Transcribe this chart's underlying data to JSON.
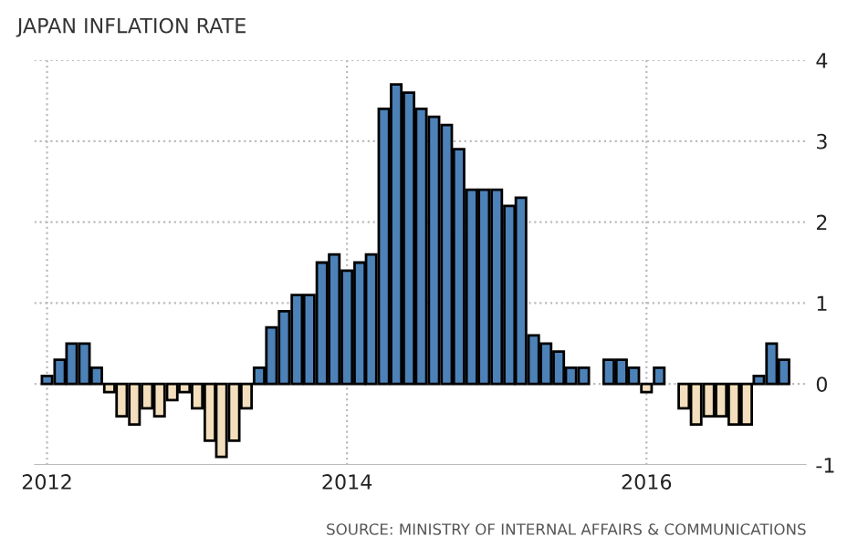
{
  "chart_data": {
    "type": "bar",
    "title": "JAPAN INFLATION RATE",
    "x": [
      "2012-01",
      "2012-02",
      "2012-03",
      "2012-04",
      "2012-05",
      "2012-06",
      "2012-07",
      "2012-08",
      "2012-09",
      "2012-10",
      "2012-11",
      "2012-12",
      "2013-01",
      "2013-02",
      "2013-03",
      "2013-04",
      "2013-05",
      "2013-06",
      "2013-07",
      "2013-08",
      "2013-09",
      "2013-10",
      "2013-11",
      "2013-12",
      "2014-01",
      "2014-02",
      "2014-03",
      "2014-04",
      "2014-05",
      "2014-06",
      "2014-07",
      "2014-08",
      "2014-09",
      "2014-10",
      "2014-11",
      "2014-12",
      "2015-01",
      "2015-02",
      "2015-03",
      "2015-04",
      "2015-05",
      "2015-06",
      "2015-07",
      "2015-08",
      "2015-09",
      "2015-10",
      "2015-11",
      "2015-12",
      "2016-01",
      "2016-02",
      "2016-03",
      "2016-04",
      "2016-05",
      "2016-06",
      "2016-07",
      "2016-08",
      "2016-09",
      "2016-10",
      "2016-11",
      "2016-12"
    ],
    "values": [
      0.1,
      0.3,
      0.5,
      0.5,
      0.2,
      -0.1,
      -0.4,
      -0.5,
      -0.3,
      -0.4,
      -0.2,
      -0.1,
      -0.3,
      -0.7,
      -0.9,
      -0.7,
      -0.3,
      0.2,
      0.7,
      0.9,
      1.1,
      1.1,
      1.5,
      1.6,
      1.4,
      1.5,
      1.6,
      3.4,
      3.7,
      3.6,
      3.4,
      3.3,
      3.2,
      2.9,
      2.4,
      2.4,
      2.4,
      2.2,
      2.3,
      0.6,
      0.5,
      0.4,
      0.2,
      0.2,
      null,
      0.3,
      0.3,
      0.2,
      -0.1,
      0.2,
      null,
      -0.3,
      -0.5,
      -0.4,
      -0.4,
      -0.5,
      -0.5,
      0.1,
      0.5,
      0.3
    ],
    "colors": [
      "#4d82b8",
      "#4d82b8",
      "#4d82b8",
      "#4d82b8",
      "#4d82b8",
      "#f3dfbd",
      "#f3dfbd",
      "#f3dfbd",
      "#f3dfbd",
      "#f3dfbd",
      "#f3dfbd",
      "#f3dfbd",
      "#f3dfbd",
      "#f3dfbd",
      "#f3dfbd",
      "#f3dfbd",
      "#f3dfbd",
      "#4d82b8",
      "#4d82b8",
      "#4d82b8",
      "#4d82b8",
      "#4d82b8",
      "#4d82b8",
      "#4d82b8",
      "#4d82b8",
      "#4d82b8",
      "#4d82b8",
      "#4d82b8",
      "#4d82b8",
      "#4d82b8",
      "#4d82b8",
      "#4d82b8",
      "#4d82b8",
      "#4d82b8",
      "#4d82b8",
      "#4d82b8",
      "#4d82b8",
      "#4d82b8",
      "#4d82b8",
      "#4d82b8",
      "#4d82b8",
      "#4d82b8",
      "#4d82b8",
      "#4d82b8",
      "#4d82b8",
      "#4d82b8",
      "#4d82b8",
      "#4d82b8",
      "#f3dfbd",
      "#4d82b8",
      "#4d82b8",
      "#f3dfbd",
      "#f3dfbd",
      "#f3dfbd",
      "#f3dfbd",
      "#f3dfbd",
      "#f3dfbd",
      "#4d82b8",
      "#4d82b8",
      "#4d82b8"
    ],
    "xlim": [
      "2011-12-01",
      "2017-01-25"
    ],
    "xticks": [
      {
        "value": "2012-01-01",
        "label": "2012"
      },
      {
        "value": "2014-01-01",
        "label": "2014"
      },
      {
        "value": "2016-01-01",
        "label": "2016"
      }
    ],
    "ylim": [
      -1,
      4
    ],
    "yticks": [
      -1,
      0,
      1,
      2,
      3,
      4
    ],
    "grid": true,
    "annotations": [
      "SOURCE: MINISTRY OF INTERNAL AFFAIRS & COMMUNICATIONS"
    ]
  }
}
